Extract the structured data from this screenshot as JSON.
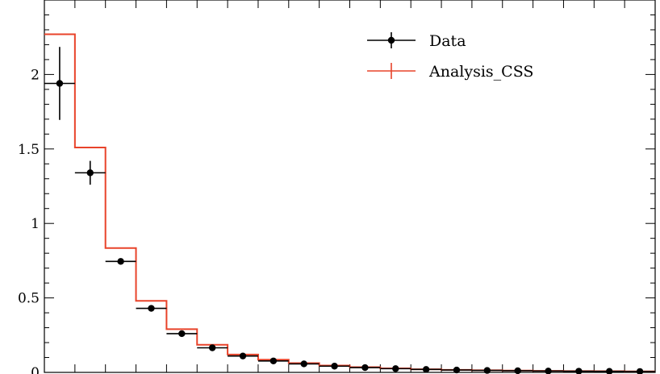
{
  "chart_data": {
    "type": "bar",
    "title": "",
    "xlabel": "",
    "ylabel": "",
    "ylim": [
      0,
      2.5
    ],
    "y_ticks": [
      "0",
      "0.5",
      "1",
      "1.5",
      "2"
    ],
    "grid": false,
    "legend_position": "top-right",
    "bin_edges": [
      0,
      1,
      2,
      3,
      4,
      5,
      6,
      7,
      8,
      9,
      10,
      11,
      12,
      13,
      14,
      15,
      16,
      17,
      18,
      19,
      20
    ],
    "series": [
      {
        "name": "Data",
        "style": "points-with-errorbars",
        "color": "#000000",
        "values": [
          1.94,
          1.34,
          0.745,
          0.43,
          0.26,
          0.165,
          0.11,
          0.077,
          0.057,
          0.042,
          0.032,
          0.025,
          0.02,
          0.016,
          0.013,
          0.011,
          0.009,
          0.008,
          0.007,
          0.006
        ],
        "errors": [
          0.245,
          0.08,
          0.02,
          0.012,
          0.008,
          0.006,
          0.005,
          0.004,
          0.003,
          0.003,
          0.002,
          0.002,
          0.002,
          0.002,
          0.001,
          0.001,
          0.001,
          0.001,
          0.001,
          0.001
        ]
      },
      {
        "name": "Analysis_CSS",
        "style": "step-histogram",
        "color": "#e8432a",
        "values": [
          2.27,
          1.51,
          0.835,
          0.48,
          0.29,
          0.185,
          0.12,
          0.085,
          0.062,
          0.046,
          0.035,
          0.027,
          0.021,
          0.017,
          0.014,
          0.012,
          0.01,
          0.009,
          0.008,
          0.007
        ]
      }
    ]
  }
}
